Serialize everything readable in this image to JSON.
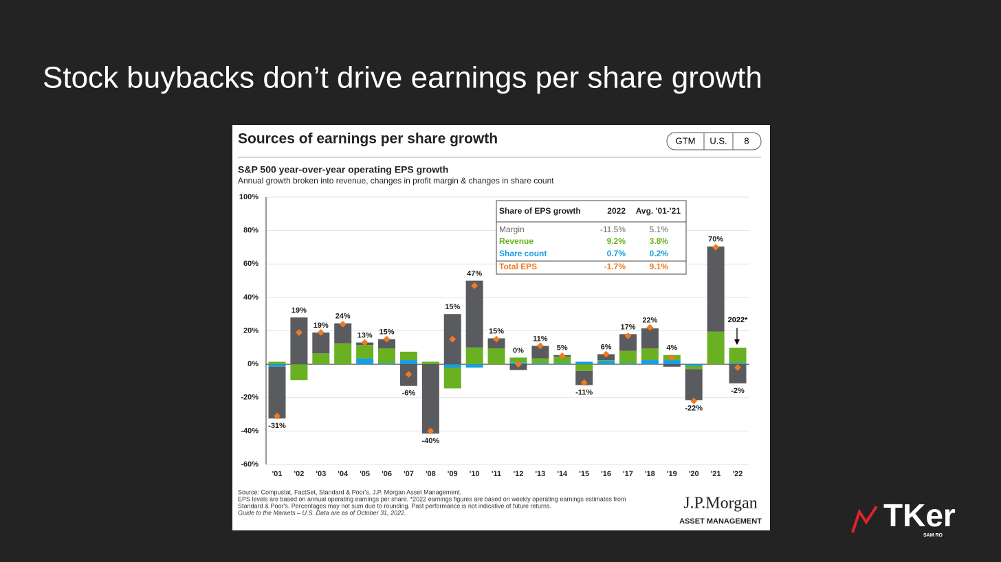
{
  "slide_title": "Stock buybacks don’t drive earnings per share growth",
  "card": {
    "header": "Sources of earnings per share growth",
    "badges": [
      "GTM",
      "U.S.",
      "8"
    ],
    "footnotes": [
      "Source: Compustat, FactSet, Standard & Poor's, J.P. Morgan Asset Management.",
      "EPS levels are based on annual operating earnings per share. *2022 earnings figures are based on weekly operating earnings estimates from",
      "Standard & Poor's. Percentages may not sum due to rounding. Past performance is not indicative of future returns.",
      "Guide to the Markets – U.S. Data are as of October 31, 2022."
    ],
    "brand": "J.P.Morgan",
    "brand_sub": "ASSET MANAGEMENT"
  },
  "logo": {
    "name": "TKer",
    "sub": "SAM RO"
  },
  "chart_data": {
    "type": "bar",
    "title": "S&P 500 year-over-year operating EPS growth",
    "subtitle": "Annual growth broken into revenue, changes in profit margin & changes in share count",
    "categories": [
      "'01",
      "'02",
      "'03",
      "'04",
      "'05",
      "'06",
      "'07",
      "'08",
      "'09",
      "'10",
      "'11",
      "'12",
      "'13",
      "'14",
      "'15",
      "'16",
      "'17",
      "'18",
      "'19",
      "'20",
      "'21",
      "'22"
    ],
    "series": [
      {
        "name": "Margin",
        "color": "#595b5f",
        "values": [
          -31,
          28,
          12.5,
          12,
          1.5,
          5.5,
          -13,
          -41.5,
          30,
          40,
          6,
          -3.5,
          7.5,
          1,
          -8.5,
          3.5,
          10,
          12,
          -1.5,
          -18.5,
          51,
          -11.5
        ]
      },
      {
        "name": "Revenue",
        "color": "#6ab023",
        "values": [
          1.5,
          -9.5,
          6.5,
          12.5,
          8,
          9,
          5,
          1.5,
          -12.5,
          10,
          9.5,
          3,
          3,
          4,
          -4,
          0.5,
          7.5,
          7,
          3,
          -2,
          19.5,
          9.2
        ]
      },
      {
        "name": "Share count",
        "color": "#1a9de0",
        "values": [
          -1.5,
          0,
          0,
          0,
          3.5,
          0.5,
          2.5,
          0,
          -2,
          -2,
          0,
          1,
          0.5,
          0.5,
          1.5,
          2,
          0.5,
          2.5,
          2.5,
          -1,
          0,
          0.7
        ]
      },
      {
        "name": "Total EPS",
        "color": "#f07a22",
        "values": [
          -31,
          19,
          19,
          24,
          13,
          15,
          -6,
          -40,
          15,
          47,
          15,
          0,
          11,
          5,
          -11,
          6,
          17,
          22,
          4,
          -22,
          70,
          -2
        ],
        "value_labels": [
          "-31%",
          "19%",
          "19%",
          "24%",
          "13%",
          "15%",
          "-6%",
          "-40%",
          "15%",
          "47%",
          "15%",
          "0%",
          "11%",
          "5%",
          "-11%",
          "6%",
          "17%",
          "22%",
          "4%",
          "-22%",
          "70%",
          "-2%"
        ]
      }
    ],
    "ylim": [
      -60,
      100
    ],
    "yticks": [
      {
        "value": -60,
        "label": "-60%"
      },
      {
        "value": -40,
        "label": "-40%"
      },
      {
        "value": -20,
        "label": "-20%"
      },
      {
        "value": 0,
        "label": "0%"
      },
      {
        "value": 20,
        "label": "20%"
      },
      {
        "value": 40,
        "label": "40%"
      },
      {
        "value": 60,
        "label": "60%"
      },
      {
        "value": 80,
        "label": "80%"
      },
      {
        "value": 100,
        "label": "100%"
      }
    ],
    "grid": true,
    "annotation": "2022*",
    "table": {
      "header": [
        "Share of EPS growth",
        "2022",
        "Avg. '01-'21"
      ],
      "rows": [
        [
          "-11.5%",
          "5.1%"
        ],
        [
          "9.2%",
          "3.8%"
        ],
        [
          "0.7%",
          "0.2%"
        ],
        [
          "-1.7%",
          "9.1%"
        ]
      ]
    }
  }
}
